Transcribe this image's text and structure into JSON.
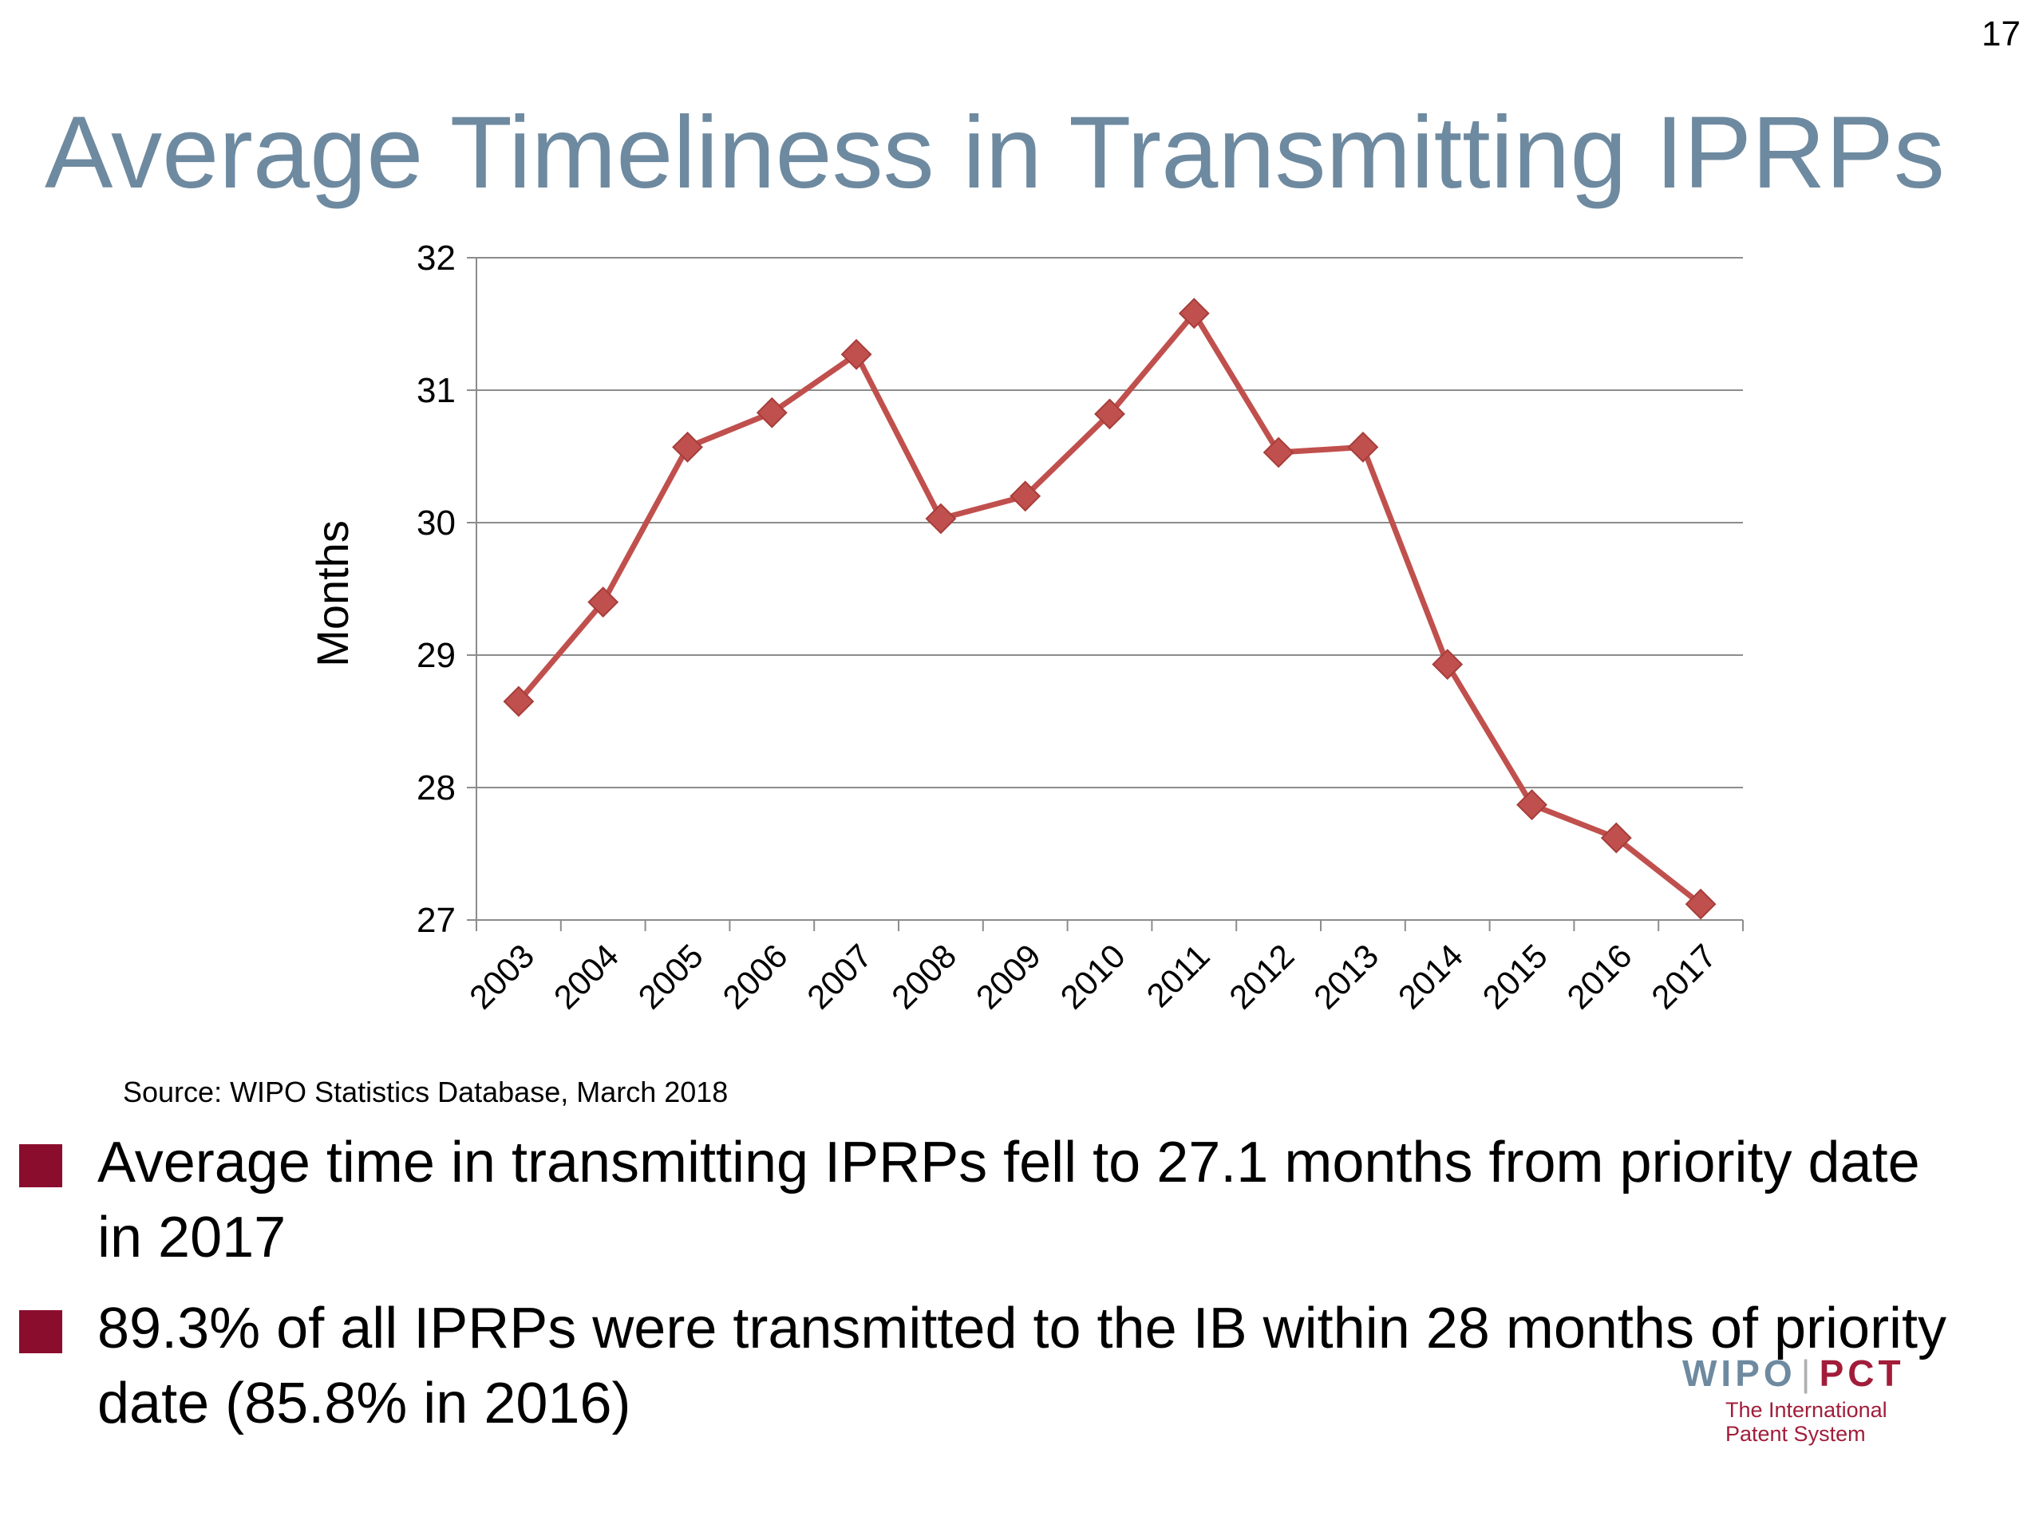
{
  "slide": {
    "number": "17",
    "title": "Average Timeliness in Transmitting IPRPs",
    "source": "Source: WIPO Statistics Database, March 2018"
  },
  "bullets": [
    "Average time in transmitting IPRPs fell to 27.1 months from priority date in 2017",
    "89.3% of all IPRPs were transmitted to the IB within 28 months of priority date (85.8% in 2016)"
  ],
  "logo": {
    "wipo": "WIPO",
    "pct": "PCT",
    "subtitle_line1": "The International",
    "subtitle_line2": "Patent System"
  },
  "chart_data": {
    "type": "line",
    "title": "",
    "xlabel": "",
    "ylabel": "Months",
    "categories": [
      "2003",
      "2004",
      "2005",
      "2006",
      "2007",
      "2008",
      "2009",
      "2010",
      "2011",
      "2012",
      "2013",
      "2014",
      "2015",
      "2016",
      "2017"
    ],
    "series": [
      {
        "values": [
          28.65,
          29.4,
          30.57,
          30.83,
          31.27,
          30.03,
          30.2,
          30.82,
          31.58,
          30.53,
          30.57,
          28.93,
          27.87,
          27.62,
          27.12
        ],
        "color": "#c0504d",
        "marker": "diamond"
      }
    ],
    "ylim": [
      27,
      32
    ],
    "yticks": [
      27,
      28,
      29,
      30,
      31,
      32
    ],
    "grid": true,
    "legend": "none"
  }
}
